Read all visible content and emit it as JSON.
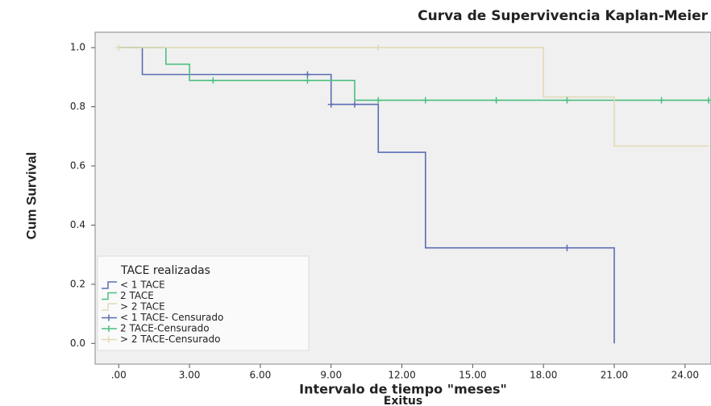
{
  "chart_data": {
    "type": "step",
    "title": "Curva de Supervivencia Kaplan-Meier",
    "x_label": "Intervalo de tiempo \"meses\"",
    "x_sublabel": "Exitus",
    "y_label": "Cum Survival",
    "legend_title": "TACE realizadas",
    "xlim": [
      -1,
      25.1
    ],
    "ylim": [
      -0.07,
      1.052
    ],
    "xticks": [
      {
        "value": 0,
        "label": ".00"
      },
      {
        "value": 3,
        "label": "3.00"
      },
      {
        "value": 6,
        "label": "6.00"
      },
      {
        "value": 9,
        "label": "9.00"
      },
      {
        "value": 12,
        "label": "12.00"
      },
      {
        "value": 15,
        "label": "15.00"
      },
      {
        "value": 18,
        "label": "18.00"
      },
      {
        "value": 21,
        "label": "21.00"
      },
      {
        "value": 24,
        "label": "24.00"
      }
    ],
    "yticks": [
      {
        "value": 0,
        "label": "0.0"
      },
      {
        "value": 0.2,
        "label": "0.2"
      },
      {
        "value": 0.4,
        "label": "0.4"
      },
      {
        "value": 0.6,
        "label": "0.6"
      },
      {
        "value": 0.8,
        "label": "0.8"
      },
      {
        "value": 1,
        "label": "1.0"
      }
    ],
    "series": [
      {
        "name": "< 1 TACE",
        "kind": "step",
        "color": "#5b6cb4",
        "x": [
          0,
          1,
          9,
          11,
          13,
          21
        ],
        "values": [
          1,
          0.909,
          0.808,
          0.646,
          0.323,
          0
        ]
      },
      {
        "name": "2 TACE",
        "kind": "step",
        "color": "#4cbf80",
        "x": [
          0,
          2,
          3,
          10,
          25
        ],
        "values": [
          1,
          0.944,
          0.889,
          0.822,
          0.822
        ]
      },
      {
        "name": "> 2 TACE",
        "kind": "step",
        "color": "#e2dab6",
        "x": [
          0,
          18,
          21,
          25
        ],
        "values": [
          1,
          0.833,
          0.667,
          0.667
        ]
      },
      {
        "name": "< 1 TACE- Censurado",
        "kind": "censored",
        "color": "#5b6cb4",
        "x": [
          8,
          9,
          10,
          19
        ],
        "values": [
          0.909,
          0.808,
          0.808,
          0.323
        ]
      },
      {
        "name": "2 TACE-Censurado",
        "kind": "censored",
        "color": "#4cbf80",
        "x": [
          4,
          8,
          11,
          13,
          16,
          19,
          23,
          25
        ],
        "values": [
          0.889,
          0.889,
          0.822,
          0.822,
          0.822,
          0.822,
          0.822,
          0.822
        ]
      },
      {
        "name": "> 2 TACE-Censurado",
        "kind": "censored",
        "color": "#e2dab6",
        "x": [
          0,
          11
        ],
        "values": [
          1,
          1
        ]
      }
    ]
  }
}
